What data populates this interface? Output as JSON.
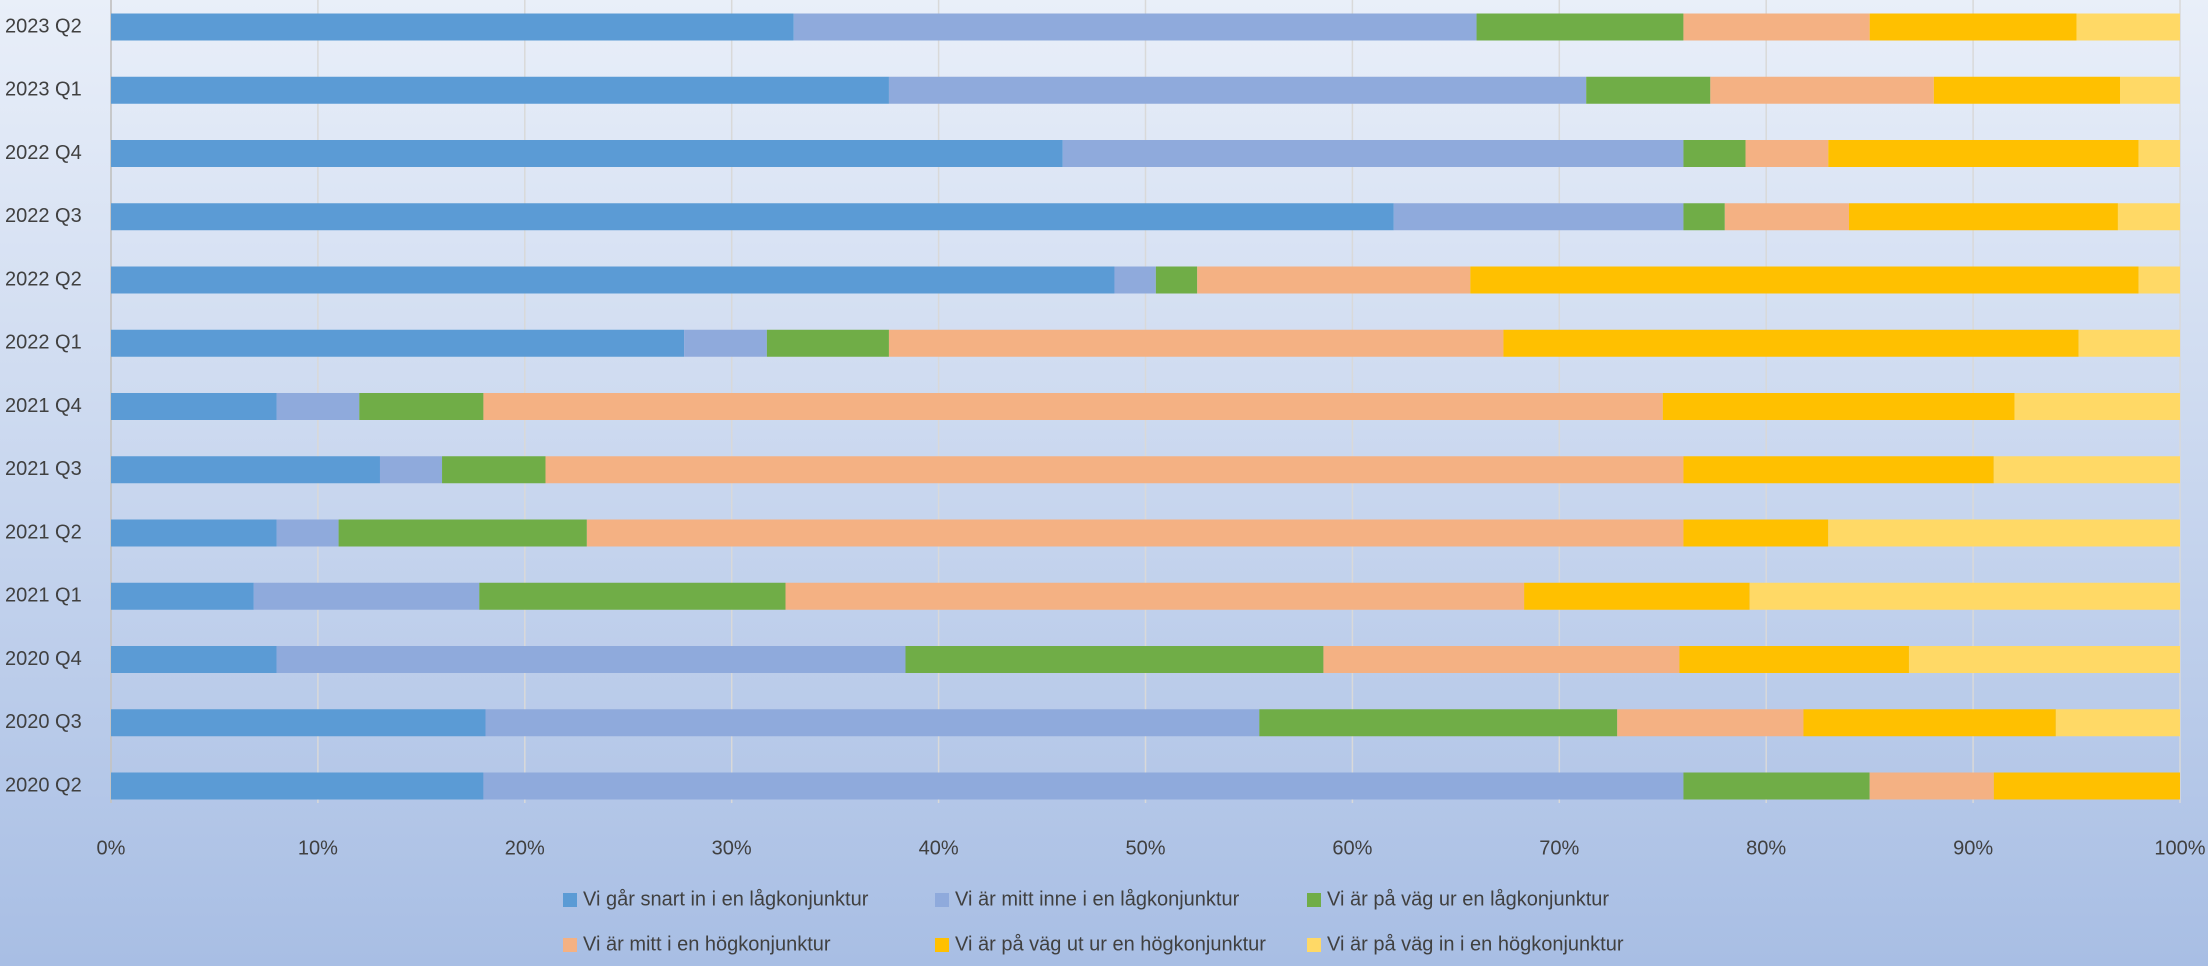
{
  "chart_data": {
    "type": "bar",
    "orientation": "horizontal",
    "stacked": true,
    "categories": [
      "2023 Q2",
      "2023 Q1",
      "2022 Q4",
      "2022 Q3",
      "2022 Q2",
      "2022 Q1",
      "2021 Q4",
      "2021 Q3",
      "2021 Q2",
      "2021 Q1",
      "2020 Q4",
      "2020 Q3",
      "2020 Q2"
    ],
    "series": [
      {
        "name": "Vi går snart in i en lågkonjunktur",
        "color": "#5b9bd5",
        "values": [
          33,
          37.6,
          46,
          62,
          48.5,
          27.7,
          8,
          13,
          8,
          6.9,
          8,
          18.1,
          18
        ]
      },
      {
        "name": "Vi är mitt inne i en lågkonjunktur",
        "color": "#8faadc",
        "values": [
          33,
          33.7,
          30,
          14,
          2,
          4,
          4,
          3,
          3,
          10.9,
          30.4,
          37.4,
          58
        ]
      },
      {
        "name": "Vi är på väg ur en lågkonjunktur",
        "color": "#70ad47",
        "values": [
          10,
          6,
          3,
          2,
          2,
          5.9,
          6,
          5,
          12,
          14.8,
          20.2,
          17.3,
          9
        ]
      },
      {
        "name": "Vi är mitt i en högkonjunktur",
        "color": "#f4b183",
        "values": [
          9,
          10.8,
          4,
          6,
          13.2,
          29.7,
          57,
          55,
          53,
          35.7,
          17.2,
          9,
          6
        ]
      },
      {
        "name": "Vi är på väg ut ur en högkonjunktur",
        "color": "#ffc000",
        "values": [
          10,
          9,
          15,
          13,
          32.3,
          27.8,
          17,
          15,
          7,
          10.9,
          11.1,
          12.2,
          9
        ]
      },
      {
        "name": "Vi är på väg in i en högkonjunktur",
        "color": "#ffd966",
        "values": [
          5,
          2.9,
          2,
          3,
          2,
          4.9,
          8,
          9,
          17,
          20.8,
          13.1,
          6,
          0
        ]
      }
    ],
    "xlim": [
      0,
      100
    ],
    "xticks": [
      {
        "value": 0,
        "label": "0%"
      },
      {
        "value": 10,
        "label": "10%"
      },
      {
        "value": 20,
        "label": "20%"
      },
      {
        "value": 30,
        "label": "30%"
      },
      {
        "value": 40,
        "label": "40%"
      },
      {
        "value": 50,
        "label": "50%"
      },
      {
        "value": 60,
        "label": "60%"
      },
      {
        "value": 70,
        "label": "70%"
      },
      {
        "value": 80,
        "label": "80%"
      },
      {
        "value": 90,
        "label": "90%"
      },
      {
        "value": 100,
        "label": "100%"
      }
    ],
    "grid": true,
    "legend": "bottom"
  }
}
